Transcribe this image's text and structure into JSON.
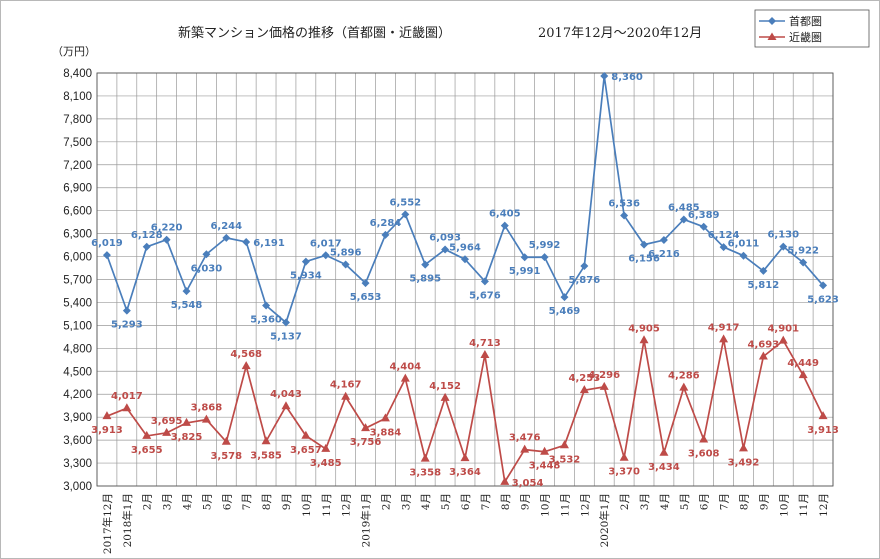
{
  "chart_data": {
    "type": "line",
    "title": "新築マンション価格の推移（首都圏・近畿圏）",
    "subtitle": "2017年12月～2020年12月",
    "ylabel": "（万円）",
    "ylim": [
      3000,
      8400
    ],
    "ytick_step": 300,
    "grid": true,
    "legend_position": "top-right",
    "categories": [
      "2017年12月",
      "2018年1月",
      "2月",
      "3月",
      "4月",
      "5月",
      "6月",
      "7月",
      "8月",
      "9月",
      "10月",
      "11月",
      "12月",
      "2019年1月",
      "2月",
      "3月",
      "4月",
      "5月",
      "6月",
      "7月",
      "8月",
      "9月",
      "10月",
      "11月",
      "12月",
      "2020年1月",
      "2月",
      "3月",
      "4月",
      "5月",
      "6月",
      "7月",
      "8月",
      "9月",
      "10月",
      "11月",
      "12月"
    ],
    "series": [
      {
        "name": "首都圏",
        "color": "#4a7ebb",
        "marker": "diamond",
        "values": [
          6019,
          5293,
          6128,
          6220,
          5548,
          6030,
          6244,
          6191,
          5360,
          5137,
          5934,
          6017,
          5896,
          5653,
          6284,
          6552,
          5895,
          6093,
          5964,
          5676,
          6405,
          5991,
          5992,
          5469,
          5876,
          8360,
          6536,
          6156,
          6216,
          6485,
          6389,
          6124,
          6011,
          5812,
          6130,
          5922,
          5623
        ],
        "label_positions": [
          "a",
          "b",
          "a",
          "a",
          "b",
          "b",
          "a",
          "r",
          "b",
          "b",
          "b",
          "a",
          "a",
          "b",
          "a",
          "a",
          "b",
          "a",
          "a",
          "b",
          "a",
          "b",
          "a",
          "b",
          "b",
          "r",
          "a",
          "b",
          "b",
          "a",
          "a",
          "a",
          "a",
          "b",
          "a",
          "a",
          "b"
        ]
      },
      {
        "name": "近畿圏",
        "color": "#be4b48",
        "marker": "triangle",
        "values": [
          3913,
          4017,
          3655,
          3695,
          3825,
          3868,
          3578,
          4568,
          3585,
          4043,
          3657,
          3485,
          4167,
          3756,
          3884,
          4404,
          3358,
          4152,
          3364,
          4713,
          3054,
          3476,
          3448,
          3532,
          4253,
          4296,
          3370,
          4905,
          3434,
          4286,
          3608,
          4917,
          3492,
          4693,
          4901,
          4449,
          3913
        ],
        "label_positions": [
          "b",
          "a",
          "b",
          "a",
          "b",
          "a",
          "b",
          "a",
          "b",
          "a",
          "b",
          "b",
          "a",
          "b",
          "b",
          "a",
          "b",
          "a",
          "b",
          "a",
          "r",
          "a",
          "b",
          "b",
          "a",
          "a",
          "b",
          "a",
          "b",
          "a",
          "b",
          "a",
          "b",
          "a",
          "a",
          "a",
          "b"
        ]
      }
    ]
  }
}
